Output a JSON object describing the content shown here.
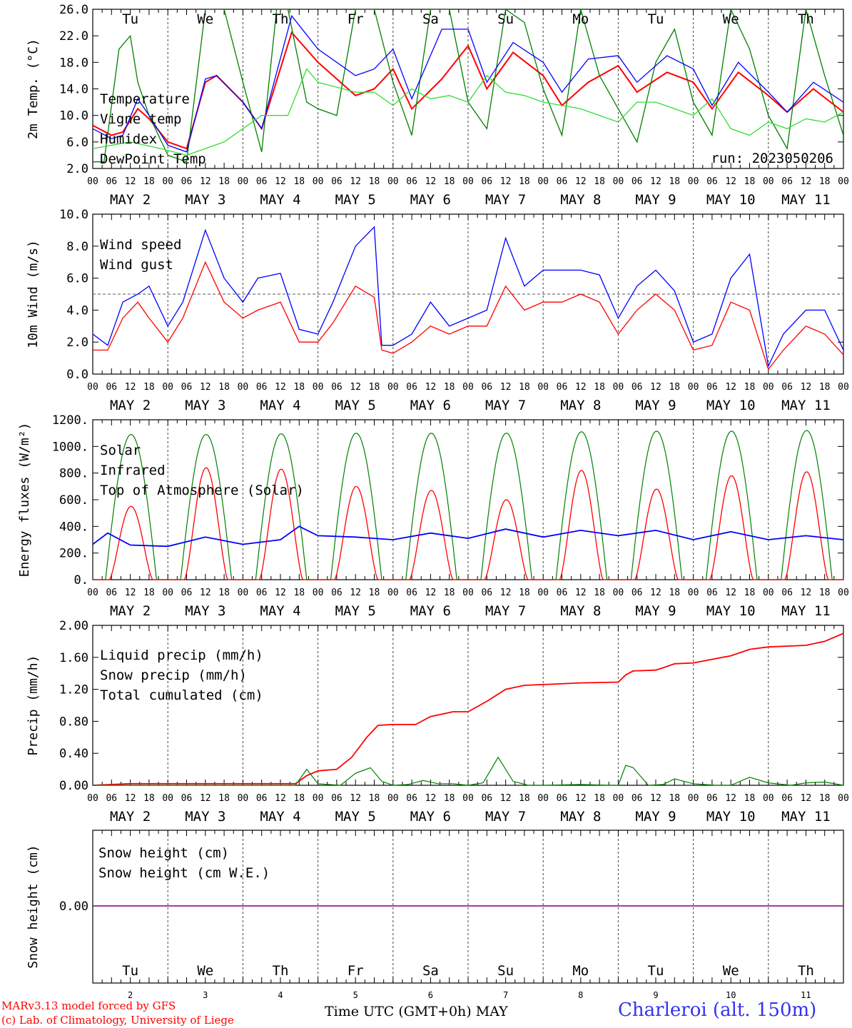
{
  "run_label": "run: 2023050206",
  "day_names": [
    "Tu",
    "We",
    "Th",
    "Fr",
    "Sa",
    "Su",
    "Mo",
    "Tu",
    "We",
    "Th"
  ],
  "day_name_colors": [
    "#000000",
    "#000000",
    "#000000",
    "#000000",
    "#ff0000",
    "#ff0000",
    "#000000",
    "#000000",
    "#000000",
    "#000000"
  ],
  "date_labels": [
    "MAY  2",
    "MAY  3",
    "MAY  4",
    "MAY  5",
    "MAY  6",
    "MAY  7",
    "MAY  8",
    "MAY  9",
    "MAY 10",
    "MAY 11"
  ],
  "hour_ticks": [
    "00",
    "06",
    "12",
    "18"
  ],
  "last_tick": "00",
  "bottom_day_numbers": [
    "2",
    "3",
    "4",
    "5",
    "6",
    "7",
    "8",
    "9",
    "10",
    "11"
  ],
  "footer": {
    "model_line": "MARv3.13 model forced by GFS",
    "lab_line": "(c) Lab. of Climatology, University of Liege",
    "axis_title": "Time UTC (GMT+0h)",
    "month": "MAY",
    "station": "Charleroi (alt. 150m)"
  },
  "colors": {
    "red": "#ff0000",
    "green": "#008000",
    "blue": "#0000ff",
    "lightgreen": "#33dd33",
    "purple": "#800080",
    "grid": "#808080"
  },
  "chart_data": [
    {
      "type": "line",
      "ylabel": "2m Temp. (°C)",
      "ylim": [
        2,
        26
      ],
      "yticks": [
        "2.0",
        "6.0",
        "10.0",
        "14.0",
        "18.0",
        "22.0",
        "26.0"
      ],
      "x_unit": "days since MAY 2 00 UTC",
      "xlim": [
        0,
        10
      ],
      "legend": [
        "Temperature",
        "Vigne temp",
        "Humidex",
        "DewPoint Temp"
      ],
      "series": [
        {
          "name": "Temperature",
          "color": "red",
          "x": [
            0,
            0.25,
            0.4,
            0.6,
            0.75,
            1.0,
            1.25,
            1.5,
            1.65,
            2.0,
            2.25,
            2.65,
            3.0,
            3.5,
            3.75,
            4.0,
            4.25,
            4.65,
            5.0,
            5.25,
            5.6,
            6.0,
            6.25,
            6.6,
            7.0,
            7.25,
            7.65,
            8.0,
            8.25,
            8.6,
            9.0,
            9.25,
            9.6,
            10.0
          ],
          "y": [
            8.5,
            7,
            7.5,
            11,
            9.5,
            6,
            5,
            15,
            16,
            12,
            8,
            22.5,
            18,
            13,
            14,
            17,
            11,
            15.5,
            20.5,
            14,
            19.5,
            16,
            11.5,
            15,
            17.5,
            13.5,
            16.5,
            15,
            11,
            16.5,
            13,
            10.5,
            14,
            10.5
          ]
        },
        {
          "name": "Vigne temp",
          "color": "green",
          "x": [
            0,
            0.15,
            0.35,
            0.5,
            0.6,
            0.75,
            1.0,
            1.25,
            1.5,
            1.75,
            2.0,
            2.25,
            2.45,
            2.6,
            2.85,
            3.0,
            3.25,
            3.5,
            3.75,
            4.0,
            4.25,
            4.5,
            4.75,
            5.0,
            5.25,
            5.5,
            5.75,
            6.0,
            6.25,
            6.5,
            6.75,
            7.0,
            7.25,
            7.5,
            7.75,
            8.0,
            8.25,
            8.5,
            8.75,
            9.0,
            9.25,
            9.5,
            9.75,
            10.0
          ],
          "y": [
            3,
            3,
            20,
            22,
            15,
            10,
            4,
            3,
            26,
            26,
            15,
            4.5,
            26,
            26,
            12,
            11,
            10,
            26,
            26,
            15,
            7,
            26,
            26,
            12,
            8,
            26,
            24,
            14,
            7,
            26,
            16,
            11,
            6,
            18,
            23,
            12,
            7,
            26,
            20,
            10,
            5,
            26,
            16,
            7
          ]
        },
        {
          "name": "Humidex",
          "color": "blue",
          "x": [
            0,
            0.25,
            0.4,
            0.6,
            0.75,
            1.0,
            1.25,
            1.5,
            1.65,
            2.0,
            2.25,
            2.65,
            3.0,
            3.5,
            3.75,
            4.0,
            4.25,
            4.65,
            5.0,
            5.25,
            5.6,
            6.0,
            6.25,
            6.6,
            7.0,
            7.25,
            7.65,
            8.0,
            8.25,
            8.6,
            9.0,
            9.25,
            9.6,
            10.0
          ],
          "y": [
            8,
            6.5,
            7,
            12.5,
            10,
            5.5,
            4.5,
            15.5,
            16,
            12,
            8,
            25,
            20,
            16,
            17,
            20,
            12.5,
            23,
            23,
            15,
            21,
            18,
            13.5,
            18.5,
            19,
            15,
            19,
            17,
            11.5,
            18,
            13.5,
            10.5,
            15,
            12
          ]
        },
        {
          "name": "DewPoint Temp",
          "color": "lightgreen",
          "x": [
            0,
            0.5,
            0.9,
            1.25,
            1.5,
            1.75,
            2.0,
            2.25,
            2.6,
            2.85,
            3.0,
            3.5,
            3.75,
            4.0,
            4.25,
            4.5,
            4.75,
            5.0,
            5.25,
            5.5,
            5.75,
            6.0,
            6.5,
            6.75,
            7.0,
            7.25,
            7.5,
            7.75,
            8.0,
            8.25,
            8.5,
            8.75,
            9.0,
            9.25,
            9.5,
            9.75,
            10.0
          ],
          "y": [
            5,
            6,
            5,
            4,
            5,
            6,
            8,
            10,
            10,
            17,
            15,
            13.5,
            13.5,
            11.5,
            14,
            12.5,
            13,
            12,
            16,
            13.5,
            13,
            12,
            11,
            10,
            9,
            12,
            12,
            11,
            10,
            12.5,
            8,
            7,
            9,
            8,
            9.5,
            9,
            10.5
          ]
        }
      ]
    },
    {
      "type": "line",
      "ylabel": "10m Wind (m/s)",
      "ylim": [
        0,
        10
      ],
      "yticks": [
        "0.0",
        "2.0",
        "4.0",
        "6.0",
        "8.0",
        "10.0"
      ],
      "reference_line": 5,
      "legend": [
        "Wind speed",
        "Wind gust"
      ],
      "series": [
        {
          "name": "Wind speed",
          "color": "red",
          "x": [
            0,
            0.2,
            0.4,
            0.6,
            0.75,
            1.0,
            1.2,
            1.5,
            1.75,
            2.0,
            2.2,
            2.5,
            2.75,
            3.0,
            3.2,
            3.5,
            3.75,
            3.85,
            4.0,
            4.25,
            4.5,
            4.75,
            5.0,
            5.25,
            5.5,
            5.75,
            6.0,
            6.25,
            6.5,
            6.75,
            7.0,
            7.25,
            7.5,
            7.75,
            8.0,
            8.25,
            8.5,
            8.75,
            9.0,
            9.2,
            9.5,
            9.75,
            10.0
          ],
          "y": [
            1.5,
            1.5,
            3.5,
            4.5,
            3.5,
            2,
            3.5,
            7,
            4.5,
            3.5,
            4,
            4.5,
            2,
            2,
            3.2,
            5.5,
            4.8,
            1.5,
            1.3,
            2,
            3,
            2.5,
            3,
            3,
            5.5,
            4,
            4.5,
            4.5,
            5,
            4.5,
            2.5,
            4,
            5,
            4,
            1.5,
            1.8,
            4.5,
            4,
            0.3,
            1.5,
            3,
            2.5,
            1.2
          ]
        },
        {
          "name": "Wind gust",
          "color": "blue",
          "x": [
            0,
            0.2,
            0.4,
            0.6,
            0.75,
            1.0,
            1.2,
            1.5,
            1.75,
            2.0,
            2.2,
            2.5,
            2.75,
            3.0,
            3.2,
            3.5,
            3.75,
            3.85,
            4.0,
            4.25,
            4.5,
            4.75,
            5.0,
            5.25,
            5.5,
            5.75,
            6.0,
            6.25,
            6.5,
            6.75,
            7.0,
            7.25,
            7.5,
            7.75,
            8.0,
            8.25,
            8.5,
            8.75,
            9.0,
            9.2,
            9.5,
            9.75,
            10.0
          ],
          "y": [
            2.5,
            1.8,
            4.5,
            5,
            5.5,
            3,
            4.5,
            9,
            6,
            4.5,
            6,
            6.3,
            2.8,
            2.5,
            4.5,
            8,
            9.2,
            1.8,
            1.8,
            2.5,
            4.5,
            3,
            3.5,
            4,
            8.5,
            5.5,
            6.5,
            6.5,
            6.5,
            6.2,
            3.5,
            5.5,
            6.5,
            5.2,
            2,
            2.5,
            6,
            7.5,
            0.5,
            2.5,
            4,
            4,
            1.5
          ]
        }
      ]
    },
    {
      "type": "line",
      "ylabel": "Energy fluxes (W/m²)",
      "ylim": [
        0,
        1200
      ],
      "yticks": [
        "0.",
        "200.",
        "400.",
        "600.",
        "800.",
        "1000.",
        "1200."
      ],
      "legend": [
        "Solar",
        "Infrared",
        "Top of Atmosphere (Solar)"
      ],
      "toa_peaks": [
        1090,
        1090,
        1095,
        1100,
        1100,
        1100,
        1110,
        1115,
        1115,
        1120
      ],
      "solar_peaks": [
        550,
        840,
        830,
        700,
        670,
        600,
        820,
        680,
        780,
        810
      ],
      "infrared": {
        "x": [
          0,
          0.2,
          0.5,
          1.0,
          1.5,
          2.0,
          2.5,
          2.75,
          3.0,
          3.5,
          4.0,
          4.5,
          5.0,
          5.5,
          6.0,
          6.5,
          7.0,
          7.5,
          8.0,
          8.5,
          9.0,
          9.5,
          10.0
        ],
        "y": [
          265,
          350,
          260,
          250,
          320,
          265,
          300,
          400,
          330,
          320,
          300,
          350,
          310,
          380,
          320,
          370,
          330,
          370,
          300,
          360,
          300,
          330,
          300
        ]
      },
      "series_names": [
        "Solar",
        "Infrared",
        "Top of Atmosphere (Solar)"
      ]
    },
    {
      "type": "line",
      "ylabel": "Precip (mm/h)",
      "ylim": [
        0,
        2
      ],
      "yticks": [
        "0.00",
        "0.40",
        "0.80",
        "1.20",
        "1.60",
        "2.00"
      ],
      "legend": [
        "Liquid precip (mm/h)",
        "Snow precip (mm/h)",
        "Total cumulated (cm)"
      ],
      "series": [
        {
          "name": "Total cumulated (cm)",
          "color": "red",
          "x": [
            0,
            0.5,
            2.7,
            2.85,
            3.0,
            3.25,
            3.45,
            3.65,
            3.8,
            4.0,
            4.3,
            4.5,
            4.8,
            5.0,
            5.25,
            5.5,
            5.75,
            6.0,
            6.5,
            7.0,
            7.1,
            7.2,
            7.5,
            7.6,
            7.75,
            8.0,
            8.5,
            8.75,
            9.0,
            9.5,
            9.75,
            10.0
          ],
          "y": [
            0,
            0.02,
            0.02,
            0.12,
            0.18,
            0.2,
            0.35,
            0.6,
            0.75,
            0.76,
            0.76,
            0.86,
            0.92,
            0.92,
            1.05,
            1.2,
            1.25,
            1.26,
            1.28,
            1.29,
            1.38,
            1.43,
            1.44,
            1.47,
            1.52,
            1.53,
            1.62,
            1.7,
            1.73,
            1.75,
            1.8,
            1.9
          ]
        },
        {
          "name": "Liquid precip (mm/h)",
          "color": "green",
          "x": [
            0,
            2.7,
            2.85,
            3.0,
            3.3,
            3.5,
            3.7,
            3.85,
            4.0,
            4.2,
            4.4,
            4.6,
            4.8,
            5.0,
            5.2,
            5.4,
            5.6,
            5.8,
            6.0,
            6.5,
            6.9,
            7.0,
            7.1,
            7.2,
            7.4,
            7.6,
            7.75,
            8.0,
            8.3,
            8.5,
            8.75,
            9.0,
            9.3,
            9.5,
            9.75,
            10.0
          ],
          "y": [
            0,
            0,
            0.2,
            0.02,
            0,
            0.15,
            0.22,
            0.05,
            0,
            0.01,
            0.06,
            0.02,
            0.02,
            0,
            0.03,
            0.35,
            0.05,
            0,
            0,
            0.01,
            0,
            0,
            0.25,
            0.22,
            0,
            0.01,
            0.08,
            0.02,
            0,
            0,
            0.1,
            0.03,
            0,
            0.03,
            0.04,
            0
          ]
        }
      ]
    },
    {
      "type": "line",
      "ylabel": "Snow height (cm)",
      "yticks": [
        "0.00"
      ],
      "legend": [
        "Snow height (cm)",
        "Snow height (cm W.E.)"
      ],
      "series": [
        {
          "name": "Snow height (cm)",
          "color": "red",
          "x": [
            0,
            10
          ],
          "y": [
            0,
            0
          ]
        },
        {
          "name": "Snow height (cm W.E.)",
          "color": "blue",
          "x": [
            0,
            10
          ],
          "y": [
            0,
            0
          ]
        }
      ]
    }
  ]
}
